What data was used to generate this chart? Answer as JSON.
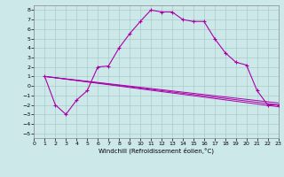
{
  "title": "",
  "xlabel": "Windchill (Refroidissement éolien,°C)",
  "xlim": [
    0,
    23
  ],
  "ylim": [
    -5.5,
    8.5
  ],
  "xticks": [
    0,
    1,
    2,
    3,
    4,
    5,
    6,
    7,
    8,
    9,
    10,
    11,
    12,
    13,
    14,
    15,
    16,
    17,
    18,
    19,
    20,
    21,
    22,
    23
  ],
  "yticks": [
    -5,
    -4,
    -3,
    -2,
    -1,
    0,
    1,
    2,
    3,
    4,
    5,
    6,
    7,
    8
  ],
  "bg_color": "#cce8e8",
  "grid_color": "#aacccc",
  "line_color": "#aa00aa",
  "curve": {
    "x": [
      1,
      2,
      3,
      4,
      5,
      6,
      7,
      8,
      9,
      10,
      11,
      12,
      13,
      14,
      15,
      16,
      17,
      18,
      19,
      20,
      21,
      22,
      23
    ],
    "y": [
      1,
      -2,
      -3,
      -1.5,
      -0.5,
      2.0,
      2.1,
      4.0,
      5.5,
      6.8,
      8.0,
      7.8,
      7.8,
      7.0,
      6.8,
      6.8,
      5.0,
      3.5,
      2.5,
      2.2,
      -0.5,
      -2.0,
      -2.0
    ]
  },
  "straight_lines": [
    {
      "x": [
        1,
        23
      ],
      "y": [
        1,
        -2
      ]
    },
    {
      "x": [
        1,
        23
      ],
      "y": [
        1,
        -1.8
      ]
    },
    {
      "x": [
        1,
        23
      ],
      "y": [
        1,
        -2.2
      ]
    }
  ]
}
